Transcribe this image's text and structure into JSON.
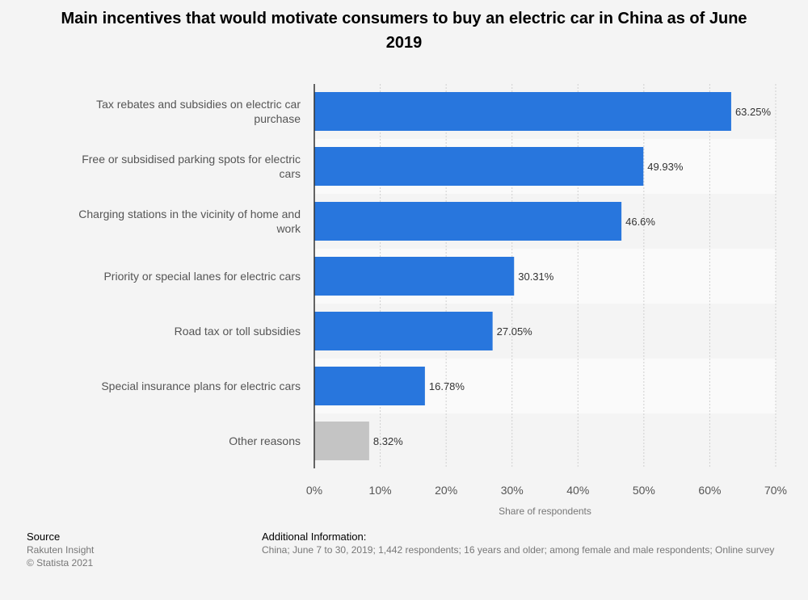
{
  "chart_data": {
    "type": "bar",
    "orientation": "horizontal",
    "title": "Main incentives that would motivate consumers to buy an electric car in China as of June 2019",
    "categories": [
      [
        "Tax rebates and subsidies on electric car",
        "purchase"
      ],
      [
        "Free or subsidised parking spots for electric",
        "cars"
      ],
      [
        "Charging stations in the vicinity of home and",
        "work"
      ],
      [
        "Priority or special lanes for electric cars"
      ],
      [
        "Road tax or toll subsidies"
      ],
      [
        "Special insurance plans for electric cars"
      ],
      [
        "Other reasons"
      ]
    ],
    "values": [
      63.25,
      49.93,
      46.6,
      30.31,
      27.05,
      16.78,
      8.32
    ],
    "value_labels": [
      "63.25%",
      "49.93%",
      "46.6%",
      "30.31%",
      "27.05%",
      "16.78%",
      "8.32%"
    ],
    "bar_colors": [
      "#2876dd",
      "#2876dd",
      "#2876dd",
      "#2876dd",
      "#2876dd",
      "#2876dd",
      "#c4c4c4"
    ],
    "xlim": [
      0,
      70
    ],
    "xticks": [
      0,
      10,
      20,
      30,
      40,
      50,
      60,
      70
    ],
    "xtick_labels": [
      "0%",
      "10%",
      "20%",
      "30%",
      "40%",
      "50%",
      "60%",
      "70%"
    ],
    "xlabel": "Share of respondents",
    "ylabel": "",
    "grid": true
  },
  "footer": {
    "source_heading": "Source",
    "source_lines": [
      "Rakuten Insight",
      "© Statista 2021"
    ],
    "info_heading": "Additional Information:",
    "info_text": "China; June 7 to 30, 2019; 1,442 respondents; 16 years and older; among female and male respondents; Online survey"
  },
  "colors": {
    "background": "#f4f4f4",
    "band": "#fafafa",
    "grid": "#d0d0d0",
    "axis": "#333333",
    "text": "#555555"
  }
}
